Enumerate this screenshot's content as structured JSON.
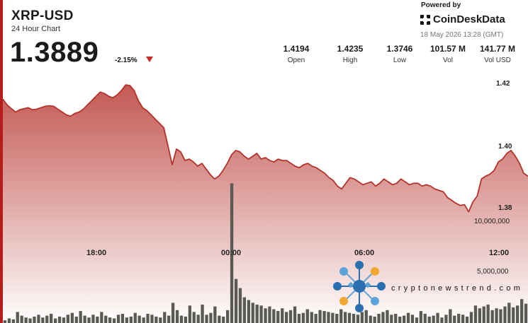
{
  "header": {
    "ticker": "XRP-USD",
    "subtitle": "24 Hour Chart",
    "price": "1.3889",
    "change": "-2.15%"
  },
  "stats": [
    {
      "value": "1.4194",
      "label": "Open"
    },
    {
      "value": "1.4235",
      "label": "High"
    },
    {
      "value": "1.3746",
      "label": "Low"
    },
    {
      "value": "101.57 M",
      "label": "Vol"
    },
    {
      "value": "141.77 M",
      "label": "Vol USD"
    }
  ],
  "branding": {
    "powered_by": "Powered by",
    "name": "CoinDeskData",
    "datetime": "18 May 2026 13:28 (GMT)"
  },
  "watermark": {
    "text": "cryptonewstrend.com"
  },
  "colors": {
    "area_line": "#b5322a",
    "area_fill_top": "#c0504a",
    "area_fill_bottom": "#ffffff",
    "volume_bar": "#5a5a55",
    "accent_red": "#c62828",
    "logo_blue": "#2a6fb0",
    "logo_lightblue": "#5ea3d8",
    "logo_orange": "#f0a830"
  },
  "chart_data": {
    "type": "area",
    "x_tick_labels": [
      "18:00",
      "00:00",
      "06:00",
      "12:00"
    ],
    "y_tick_labels": [
      "1.42",
      "1.40",
      "1.38"
    ],
    "volume_tick_labels": [
      "10,000,000",
      "5,000,000"
    ],
    "ylim": [
      1.3695,
      1.4285
    ],
    "volume_ylim": [
      0,
      15000000
    ],
    "grid": false,
    "legend": "none",
    "series": [
      {
        "kind": "price",
        "values": [
          1.4185,
          1.4165,
          1.4152,
          1.414,
          1.4148,
          1.4152,
          1.4155,
          1.4148,
          1.415,
          1.4155,
          1.416,
          1.4162,
          1.416,
          1.415,
          1.414,
          1.413,
          1.4125,
          1.4135,
          1.414,
          1.415,
          1.4165,
          1.418,
          1.4195,
          1.421,
          1.4205,
          1.4195,
          1.419,
          1.42,
          1.4215,
          1.4235,
          1.4233,
          1.4215,
          1.418,
          1.4155,
          1.4145,
          1.413,
          1.4115,
          1.41,
          1.4085,
          1.402,
          1.3955,
          1.401,
          1.4,
          1.397,
          1.3975,
          1.3965,
          1.395,
          1.396,
          1.394,
          1.392,
          1.3905,
          1.3915,
          1.3935,
          1.396,
          1.399,
          1.4005,
          1.4,
          1.3985,
          1.3975,
          1.3985,
          1.3995,
          1.3975,
          1.398,
          1.397,
          1.3965,
          1.3975,
          1.397,
          1.397,
          1.396,
          1.395,
          1.3945,
          1.3955,
          1.396,
          1.395,
          1.3945,
          1.3935,
          1.3925,
          1.391,
          1.39,
          1.388,
          1.387,
          1.389,
          1.391,
          1.3905,
          1.3895,
          1.3885,
          1.389,
          1.3895,
          1.388,
          1.389,
          1.3905,
          1.3895,
          1.3885,
          1.389,
          1.3905,
          1.3895,
          1.3885,
          1.389,
          1.389,
          1.388,
          1.3885,
          1.388,
          1.387,
          1.3865,
          1.386,
          1.384,
          1.383,
          1.382,
          1.3812,
          1.3815,
          1.379,
          1.3825,
          1.3845,
          1.3905,
          1.3915,
          1.3922,
          1.3935,
          1.3965,
          1.3975,
          1.3995,
          1.4005,
          1.3985,
          1.396,
          1.3925,
          1.3915
        ]
      },
      {
        "kind": "volume",
        "values": [
          300000,
          500000,
          400000,
          1200000,
          800000,
          600000,
          500000,
          700000,
          900000,
          600000,
          800000,
          1000000,
          500000,
          700000,
          600000,
          900000,
          1100000,
          700000,
          1300000,
          800000,
          600000,
          900000,
          700000,
          1200000,
          800000,
          600000,
          500000,
          900000,
          1000000,
          600000,
          700000,
          1100000,
          800000,
          600000,
          1000000,
          900000,
          700000,
          600000,
          1200000,
          800000,
          2200000,
          1400000,
          800000,
          700000,
          1900000,
          1200000,
          900000,
          2000000,
          900000,
          1100000,
          1800000,
          800000,
          700000,
          1400000,
          15200000,
          4800000,
          3800000,
          2800000,
          2500000,
          2200000,
          2000000,
          1900000,
          1600000,
          1800000,
          1500000,
          1300000,
          1600000,
          1200000,
          1400000,
          1800000,
          1000000,
          1100000,
          1500000,
          1200000,
          1000000,
          1400000,
          1300000,
          1200000,
          1100000,
          1000000,
          1500000,
          1200000,
          1100000,
          1000000,
          900000,
          1200000,
          1400000,
          800000,
          700000,
          1000000,
          1200000,
          1400000,
          900000,
          1000000,
          700000,
          800000,
          1100000,
          900000,
          600000,
          1300000,
          1000000,
          700000,
          800000,
          1100000,
          600000,
          900000,
          1500000,
          800000,
          1000000,
          900000,
          700000,
          1200000,
          1900000,
          1600000,
          1800000,
          2000000,
          1400000,
          1600000,
          1500000,
          1800000,
          2200000,
          1700000,
          1900000,
          2600000,
          2100000
        ]
      }
    ]
  }
}
